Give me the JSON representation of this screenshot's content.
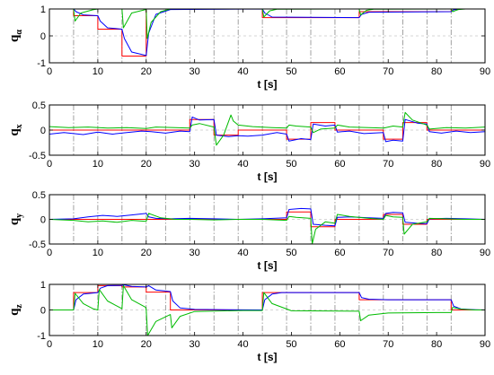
{
  "chart_data": [
    {
      "type": "line",
      "ylabel": "q",
      "ylabel_sub": "α",
      "xlabel": "t [s]",
      "xlim": [
        0,
        90
      ],
      "ylim": [
        -1,
        1
      ],
      "xticks": [
        "0",
        "10",
        "20",
        "30",
        "40",
        "50",
        "60",
        "70",
        "80",
        "90"
      ],
      "yticks": [
        "1",
        "0",
        "-1"
      ],
      "ytick_values": [
        1,
        0,
        -1
      ],
      "vlines": [
        5,
        10,
        15,
        20,
        24,
        29,
        34,
        39,
        44,
        49,
        54,
        59,
        64,
        69,
        73,
        78,
        83
      ],
      "grid": true,
      "series": [
        {
          "color": "#ff0000",
          "x": [
            0,
            5,
            5,
            10,
            10,
            15,
            15,
            20,
            20,
            25,
            25,
            44,
            44,
            64,
            64,
            83,
            83,
            90
          ],
          "y": [
            1,
            1,
            0.75,
            0.75,
            0.25,
            0.25,
            -0.75,
            -0.75,
            1,
            1,
            1,
            1,
            0.68,
            0.68,
            0.9,
            0.9,
            1,
            1
          ]
        },
        {
          "color": "#0000ff",
          "x": [
            0,
            5,
            5.5,
            7,
            10,
            10.5,
            12,
            15,
            15.5,
            17,
            20,
            20.5,
            22,
            25,
            44,
            44.5,
            46,
            64,
            64.5,
            66,
            83,
            83.5,
            85,
            90
          ],
          "y": [
            1,
            1,
            0.9,
            0.78,
            0.75,
            0.55,
            0.3,
            0.25,
            -0.1,
            -0.6,
            -0.73,
            0.1,
            0.8,
            0.98,
            1,
            0.85,
            0.7,
            0.68,
            0.8,
            0.88,
            0.9,
            0.97,
            1,
            1
          ]
        },
        {
          "color": "#00bb00",
          "x": [
            0,
            5,
            5.3,
            6.5,
            9,
            10,
            14.9,
            15,
            15.3,
            17,
            19.9,
            20,
            20.2,
            21,
            23,
            25,
            43.9,
            44,
            44.3,
            45.5,
            47,
            63.9,
            64,
            64.3,
            65.5,
            67,
            82.9,
            83,
            83.3,
            84.5,
            86,
            90
          ],
          "y": [
            1,
            1,
            0.55,
            0.85,
            0.97,
            1,
            1,
            1,
            0.3,
            0.85,
            0.98,
            1,
            -0.1,
            0.5,
            0.9,
            1,
            1,
            1,
            0.7,
            0.93,
            0.99,
            1,
            1,
            0.78,
            0.95,
            0.99,
            1,
            1,
            0.9,
            0.98,
            1,
            1
          ]
        }
      ]
    },
    {
      "type": "line",
      "ylabel": "q",
      "ylabel_sub": "x",
      "xlabel": "t [s]",
      "xlim": [
        0,
        90
      ],
      "ylim": [
        -0.5,
        0.5
      ],
      "xticks": [
        "0",
        "10",
        "20",
        "30",
        "40",
        "50",
        "60",
        "70",
        "80",
        "90"
      ],
      "yticks": [
        "0.5",
        "0",
        "-0.5"
      ],
      "ytick_values": [
        0.5,
        0,
        -0.5
      ],
      "vlines": [
        5,
        10,
        15,
        20,
        24,
        29,
        34,
        39,
        44,
        49,
        54,
        59,
        64,
        69,
        73,
        78,
        83
      ],
      "grid": true,
      "series": [
        {
          "color": "#ff0000",
          "x": [
            0,
            29,
            29,
            34,
            34,
            39,
            39,
            49,
            49,
            54,
            54,
            59,
            59,
            69,
            69,
            73,
            73,
            78,
            78,
            90
          ],
          "y": [
            0,
            0,
            0.21,
            0.21,
            -0.1,
            -0.1,
            0,
            0,
            -0.18,
            -0.18,
            0.15,
            0.15,
            0,
            0,
            -0.18,
            -0.18,
            0.15,
            0.15,
            0,
            0
          ]
        },
        {
          "color": "#0000ff",
          "x": [
            0,
            3,
            7,
            10,
            13,
            16,
            19,
            21,
            24,
            27,
            29,
            29.5,
            31,
            34,
            34.5,
            37,
            39,
            41,
            44,
            47,
            49,
            49.5,
            52,
            54,
            54.5,
            57,
            59,
            59.5,
            62,
            65,
            69,
            69.5,
            71,
            73,
            73.5,
            76,
            78,
            78.5,
            81,
            84,
            87,
            90
          ],
          "y": [
            -0.08,
            -0.05,
            -0.09,
            -0.04,
            -0.08,
            -0.05,
            -0.02,
            -0.03,
            -0.06,
            -0.02,
            -0.03,
            0.26,
            0.2,
            0.21,
            -0.1,
            -0.13,
            -0.11,
            -0.12,
            -0.1,
            -0.05,
            -0.08,
            -0.22,
            -0.17,
            -0.19,
            0.12,
            0.08,
            0.1,
            -0.04,
            -0.02,
            -0.07,
            -0.05,
            -0.23,
            -0.2,
            -0.22,
            0.21,
            0.14,
            0.12,
            -0.03,
            -0.06,
            -0.02,
            -0.05,
            -0.03
          ]
        },
        {
          "color": "#00bb00",
          "x": [
            0,
            4,
            8,
            12,
            16,
            20,
            22,
            26,
            29,
            29.5,
            31,
            34,
            34.5,
            36,
            37.5,
            38,
            39,
            42,
            46,
            49,
            49.5,
            51,
            54,
            54.5,
            56,
            59,
            59.5,
            62,
            66,
            69,
            69.5,
            71,
            73,
            73.5,
            75,
            78,
            78.5,
            82,
            86,
            90
          ],
          "y": [
            0.07,
            0.05,
            0.06,
            0.04,
            0.05,
            0.03,
            0.06,
            0.05,
            0.04,
            0.1,
            0.13,
            0.06,
            -0.3,
            -0.1,
            0.3,
            0.18,
            0.1,
            0.07,
            0.05,
            0.04,
            0.1,
            0.08,
            0.06,
            -0.05,
            0.02,
            0.04,
            0.1,
            0.06,
            0.05,
            0.04,
            0.05,
            0.08,
            0.06,
            0.35,
            0.2,
            0.1,
            0.02,
            0.05,
            0.04,
            0.06
          ]
        }
      ]
    },
    {
      "type": "line",
      "ylabel": "q",
      "ylabel_sub": "y",
      "xlabel": "t [s]",
      "xlim": [
        0,
        90
      ],
      "ylim": [
        -0.5,
        0.5
      ],
      "xticks": [
        "0",
        "10",
        "20",
        "30",
        "40",
        "50",
        "60",
        "70",
        "80",
        "90"
      ],
      "yticks": [
        "0.5",
        "0",
        "-0.5"
      ],
      "ytick_values": [
        0.5,
        0,
        -0.5
      ],
      "vlines": [
        5,
        10,
        15,
        20,
        24,
        29,
        34,
        39,
        44,
        49,
        54,
        59,
        64,
        69,
        73,
        78,
        83
      ],
      "grid": true,
      "series": [
        {
          "color": "#ff0000",
          "x": [
            0,
            49,
            49,
            54,
            54,
            59,
            59,
            69,
            69,
            73,
            73,
            78,
            78,
            90
          ],
          "y": [
            0,
            0,
            0.15,
            0.15,
            -0.15,
            -0.15,
            0,
            0,
            0.1,
            0.1,
            -0.1,
            -0.1,
            0,
            0
          ]
        },
        {
          "color": "#0000ff",
          "x": [
            0,
            5,
            8,
            11,
            14,
            17,
            20,
            20.5,
            22,
            25,
            29,
            34,
            39,
            44,
            49,
            49.5,
            52,
            54,
            54.5,
            57,
            59,
            59.5,
            62,
            66,
            69,
            69.5,
            71,
            73,
            73.5,
            76,
            78,
            78.5,
            82,
            86,
            90
          ],
          "y": [
            0,
            0.01,
            0.05,
            0.08,
            0.06,
            0.09,
            0.12,
            0.05,
            0.02,
            0.01,
            0.02,
            0.01,
            0,
            0.01,
            0.03,
            0.2,
            0.22,
            0.21,
            -0.1,
            -0.12,
            -0.13,
            0.04,
            0.05,
            0.03,
            0.02,
            0.12,
            0.14,
            0.13,
            -0.06,
            -0.08,
            -0.09,
            0.01,
            0.02,
            0.01,
            0
          ]
        },
        {
          "color": "#00bb00",
          "x": [
            0,
            5,
            8,
            11,
            14,
            17,
            20,
            20.5,
            23,
            26,
            29,
            34,
            39,
            44,
            49,
            49.5,
            51,
            54,
            54.3,
            55,
            57,
            59,
            59.5,
            62,
            66,
            69,
            69.5,
            71,
            73,
            73.3,
            75,
            78,
            78.5,
            82,
            86,
            90
          ],
          "y": [
            0,
            -0.02,
            -0.05,
            -0.03,
            -0.06,
            -0.02,
            -0.04,
            0.12,
            0.03,
            0,
            0,
            -0.01,
            0,
            0,
            -0.02,
            0.06,
            0.04,
            0.02,
            -0.5,
            -0.2,
            -0.05,
            -0.08,
            0.1,
            0.06,
            0.02,
            0,
            0.08,
            0.05,
            0.04,
            -0.3,
            -0.1,
            -0.05,
            0.02,
            0.01,
            0,
            0
          ]
        }
      ]
    },
    {
      "type": "line",
      "ylabel": "q",
      "ylabel_sub": "z",
      "xlabel": "t [s]",
      "xlim": [
        0,
        90
      ],
      "ylim": [
        -1,
        1
      ],
      "xticks": [
        "0",
        "10",
        "20",
        "30",
        "40",
        "50",
        "60",
        "70",
        "80",
        "90"
      ],
      "yticks": [
        "1",
        "0",
        "-1"
      ],
      "ytick_values": [
        1,
        0,
        -1
      ],
      "vlines": [
        5,
        10,
        15,
        20,
        24,
        29,
        34,
        39,
        44,
        49,
        54,
        59,
        64,
        69,
        73,
        78,
        83
      ],
      "grid": true,
      "series": [
        {
          "color": "#ff0000",
          "x": [
            0,
            5,
            5,
            10,
            10,
            15,
            15,
            20,
            20,
            25,
            25,
            44,
            44,
            64,
            64,
            83,
            83,
            90
          ],
          "y": [
            0,
            0,
            0.68,
            0.68,
            0.95,
            0.95,
            0.9,
            0.9,
            0.7,
            0.7,
            0,
            0,
            0.68,
            0.68,
            0.4,
            0.4,
            0,
            0
          ]
        },
        {
          "color": "#0000ff",
          "x": [
            0,
            5,
            5.5,
            7,
            10,
            10.5,
            12,
            15,
            15.5,
            17,
            20,
            20.5,
            22,
            25,
            25.5,
            27,
            30,
            44,
            44.5,
            46,
            48,
            64,
            64.5,
            66,
            70,
            83,
            83.5,
            85,
            88,
            90
          ],
          "y": [
            0,
            0,
            0.4,
            0.62,
            0.68,
            0.85,
            0.95,
            0.96,
            0.98,
            0.92,
            0.9,
            0.95,
            0.78,
            0.72,
            0.35,
            0.08,
            0.02,
            0,
            0.4,
            0.62,
            0.68,
            0.68,
            0.48,
            0.42,
            0.4,
            0.4,
            0.15,
            0.04,
            0.01,
            0
          ]
        },
        {
          "color": "#00bb00",
          "x": [
            0,
            5,
            5.3,
            7,
            9,
            10,
            10.3,
            12,
            15,
            15.3,
            17,
            19.9,
            20,
            20.3,
            22,
            25,
            25.3,
            27,
            30,
            40,
            44,
            44.3,
            46,
            50,
            64,
            64.3,
            66,
            70,
            80,
            83,
            83.3,
            85,
            88,
            90
          ],
          "y": [
            0,
            0,
            0.65,
            0.25,
            0.05,
            0,
            0.8,
            0.35,
            0.05,
            0.95,
            0.4,
            0.1,
            0,
            -1,
            -0.45,
            -0.18,
            -0.7,
            -0.25,
            -0.06,
            -0.02,
            -0.02,
            0.68,
            0.25,
            -0.03,
            -0.05,
            -0.42,
            -0.2,
            -0.12,
            -0.1,
            -0.1,
            0.1,
            0.03,
            0,
            0
          ]
        }
      ]
    }
  ]
}
